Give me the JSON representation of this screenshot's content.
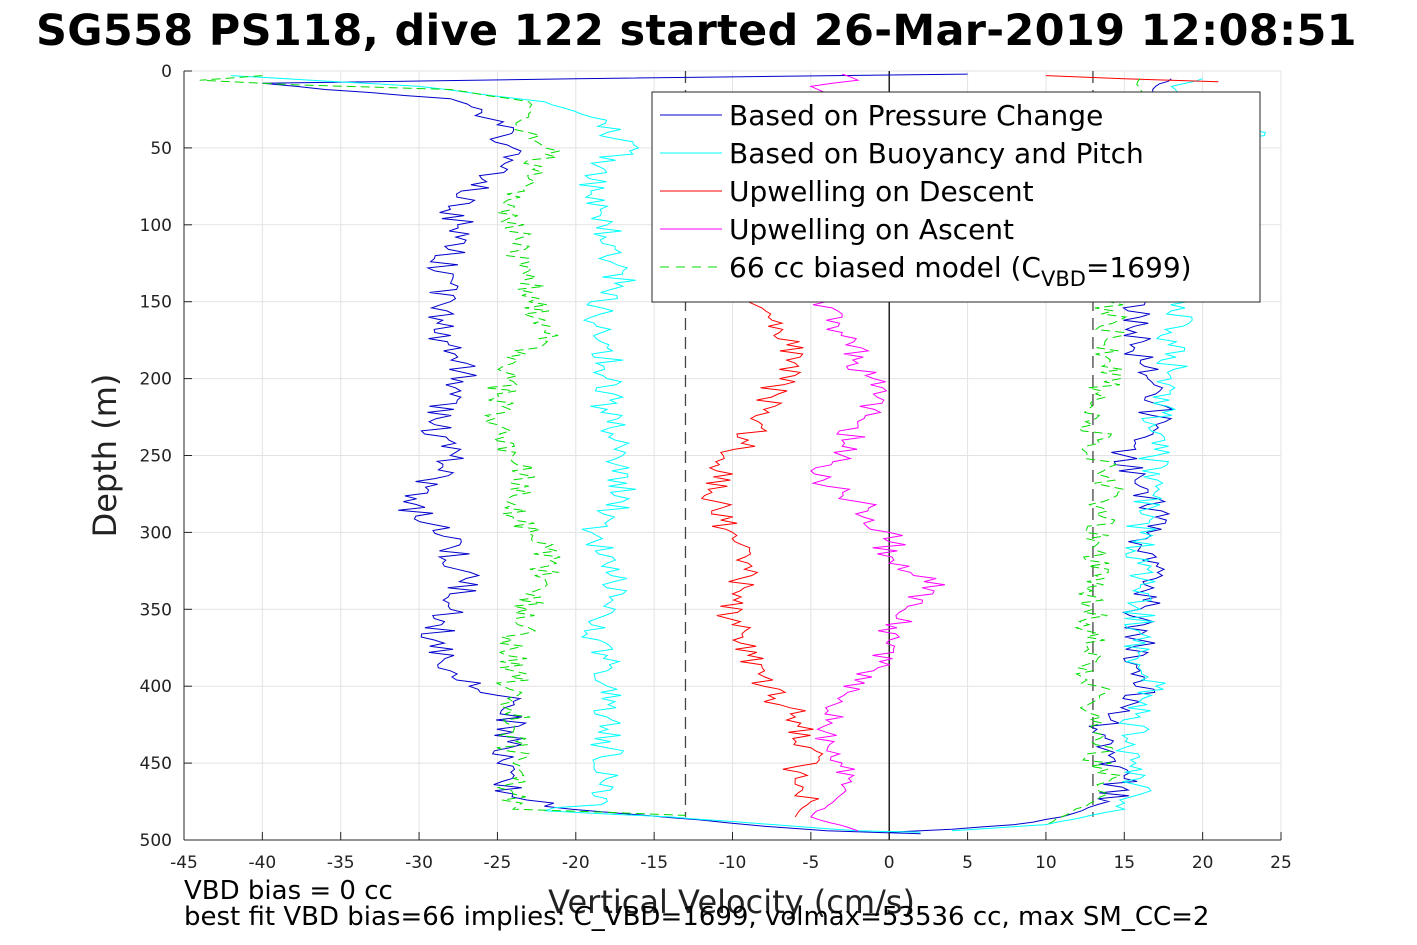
{
  "title": "SG558 PS118, dive 122 started 26-Mar-2019 12:08:51",
  "footer": {
    "line1": "VBD bias = 0 cc",
    "line2": "best fit VBD bias=66 implies: C_VBD=1699, volmax=53536 cc, max SM_CC=2"
  },
  "chart_data": {
    "type": "line",
    "xlabel": "Vertical Velocity (cm/s)",
    "ylabel": "Depth (m)",
    "xlim": [
      -45,
      25
    ],
    "ylim": [
      0,
      500
    ],
    "y_reversed": true,
    "grid": true,
    "xticks": [
      -45,
      -40,
      -35,
      -30,
      -25,
      -20,
      -15,
      -10,
      -5,
      0,
      5,
      10,
      15,
      20,
      25
    ],
    "yticks": [
      0,
      50,
      100,
      150,
      200,
      250,
      300,
      350,
      400,
      450,
      500
    ],
    "legend_position": "top-right",
    "reference_lines": [
      {
        "x": -13,
        "style": "dashed",
        "color": "#444444"
      },
      {
        "x": 0,
        "style": "solid",
        "color": "#000000"
      },
      {
        "x": 13,
        "style": "dashed",
        "color": "#444444"
      }
    ],
    "series": [
      {
        "name": "Based on Pressure Change",
        "color": "#0000cc",
        "style": "solid",
        "segments": [
          {
            "depth": [
              2,
              5,
              8,
              12,
              18,
              25,
              35,
              50,
              70,
              90,
              110,
              130,
              150,
              170,
              190,
              210,
              230,
              250,
              265,
              280,
              295,
              310,
              330,
              350,
              370,
              390,
              410,
              430,
              450,
              470,
              478,
              482,
              487,
              491,
              494,
              496
            ],
            "v": [
              5,
              -20,
              -40,
              -36,
              -28,
              -26,
              -25,
              -24,
              -26,
              -28,
              -27,
              -29,
              -28,
              -29,
              -27,
              -28,
              -29,
              -28,
              -29,
              -31,
              -29,
              -28,
              -27,
              -28,
              -29,
              -28,
              -24,
              -24,
              -25,
              -24,
              -22,
              -18,
              -12,
              -8,
              -4,
              2
            ]
          },
          {
            "depth": [
              5,
              10,
              20,
              40,
              70,
              100,
              130,
              160,
              190,
              210,
              230,
              250,
              270,
              290,
              310,
              330,
              350,
              370,
              390,
              410,
              430,
              445,
              460,
              475,
              485,
              490,
              493,
              495
            ],
            "v": [
              18,
              17,
              17,
              17,
              17,
              16,
              16,
              16,
              16,
              17,
              17,
              15,
              16,
              17,
              16,
              17,
              16,
              16,
              16,
              16,
              13,
              14,
              15,
              14,
              11,
              8,
              4,
              0
            ]
          }
        ]
      },
      {
        "name": "Based on Buoyancy and Pitch",
        "color": "#00ffff",
        "style": "solid",
        "segments": [
          {
            "depth": [
              3,
              10,
              20,
              30,
              40,
              50,
              60,
              80,
              100,
              120,
              140,
              160,
              180,
              200,
              220,
              250,
              280,
              300,
              320,
              340,
              360,
              380,
              400,
              420,
              440,
              460,
              475,
              481,
              485,
              488,
              491,
              494,
              495
            ],
            "v": [
              -42,
              -30,
              -22,
              -19,
              -18,
              -16,
              -19,
              -19,
              -18,
              -18,
              -17,
              -19,
              -18,
              -18,
              -18,
              -17,
              -17,
              -19,
              -18,
              -17,
              -19,
              -18,
              -18,
              -18,
              -18,
              -18,
              -18,
              -22,
              -14,
              -10,
              -6,
              -2,
              2
            ]
          },
          {
            "depth": [
              5,
              10,
              30,
              40,
              60,
              90,
              120,
              150,
              170,
              200,
              230,
              250,
              270,
              300,
              330,
              350,
              380,
              400,
              420,
              440,
              460,
              480,
              490,
              494
            ],
            "v": [
              20,
              18,
              19,
              24,
              18,
              18,
              17,
              19,
              18,
              18,
              17,
              17,
              17,
              16,
              16,
              16,
              16,
              17,
              16,
              15,
              16,
              15,
              10,
              4
            ]
          }
        ]
      },
      {
        "name": "Upwelling on Descent",
        "color": "#ff0000",
        "style": "solid",
        "segments": [
          {
            "depth": [
              150,
              170,
              190,
              200,
              220,
              240,
              260,
              280,
              300,
              320,
              340,
              360,
              380,
              400,
              420,
              440,
              460,
              475,
              485
            ],
            "v": [
              -9,
              -7,
              -6,
              -7,
              -8,
              -9,
              -11,
              -11,
              -10,
              -9,
              -10,
              -10,
              -9,
              -8,
              -6,
              -5,
              -6,
              -5,
              -6
            ]
          },
          {
            "depth": [
              3,
              5,
              7
            ],
            "v": [
              10,
              15,
              21
            ]
          }
        ]
      },
      {
        "name": "Upwelling on Ascent",
        "color": "#ff00ff",
        "style": "solid",
        "segments": [
          {
            "depth": [
              2,
              6,
              10,
              15
            ],
            "v": [
              -3,
              -2,
              -5,
              -4
            ]
          },
          {
            "depth": [
              150,
              170,
              190,
              200,
              210,
              230,
              250,
              260,
              280,
              300,
              320,
              330,
              350,
              370,
              390,
              410,
              430,
              450,
              470,
              485,
              494
            ],
            "v": [
              -4,
              -3,
              -2,
              -1,
              -1,
              -2,
              -3,
              -5,
              -2,
              0,
              0,
              3,
              1,
              0,
              -1,
              -3,
              -4,
              -3,
              -3,
              -5,
              -2
            ]
          }
        ]
      },
      {
        "name": "66 cc biased model (C_VBD=1699)",
        "legend_main": "66 cc biased model (C",
        "legend_sub": "VBD",
        "legend_tail": "=1699)",
        "color": "#00dd00",
        "style": "dashed",
        "segments": [
          {
            "depth": [
              3,
              6,
              9,
              12,
              20,
              30,
              40,
              50,
              70,
              90,
              110,
              130,
              150,
              170,
              190,
              210,
              230,
              250,
              270,
              290,
              310,
              330,
              350,
              370,
              390,
              410,
              430,
              450,
              470,
              480,
              484
            ],
            "v": [
              -40,
              -44,
              -38,
              -28,
              -23,
              -23,
              -23,
              -22,
              -23,
              -24,
              -24,
              -23,
              -23,
              -22,
              -24,
              -25,
              -25,
              -24,
              -23,
              -24,
              -22,
              -22,
              -23,
              -24,
              -24,
              -24,
              -24,
              -24,
              -24,
              -24,
              -13
            ]
          },
          {
            "depth": [
              5,
              30,
              70,
              110,
              150,
              190,
              230,
              270,
              310,
              350,
              390,
              430,
              470,
              490
            ],
            "v": [
              16,
              16,
              15,
              15,
              14,
              14,
              13,
              14,
              13,
              13,
              13,
              13,
              14,
              10
            ]
          }
        ]
      }
    ]
  }
}
